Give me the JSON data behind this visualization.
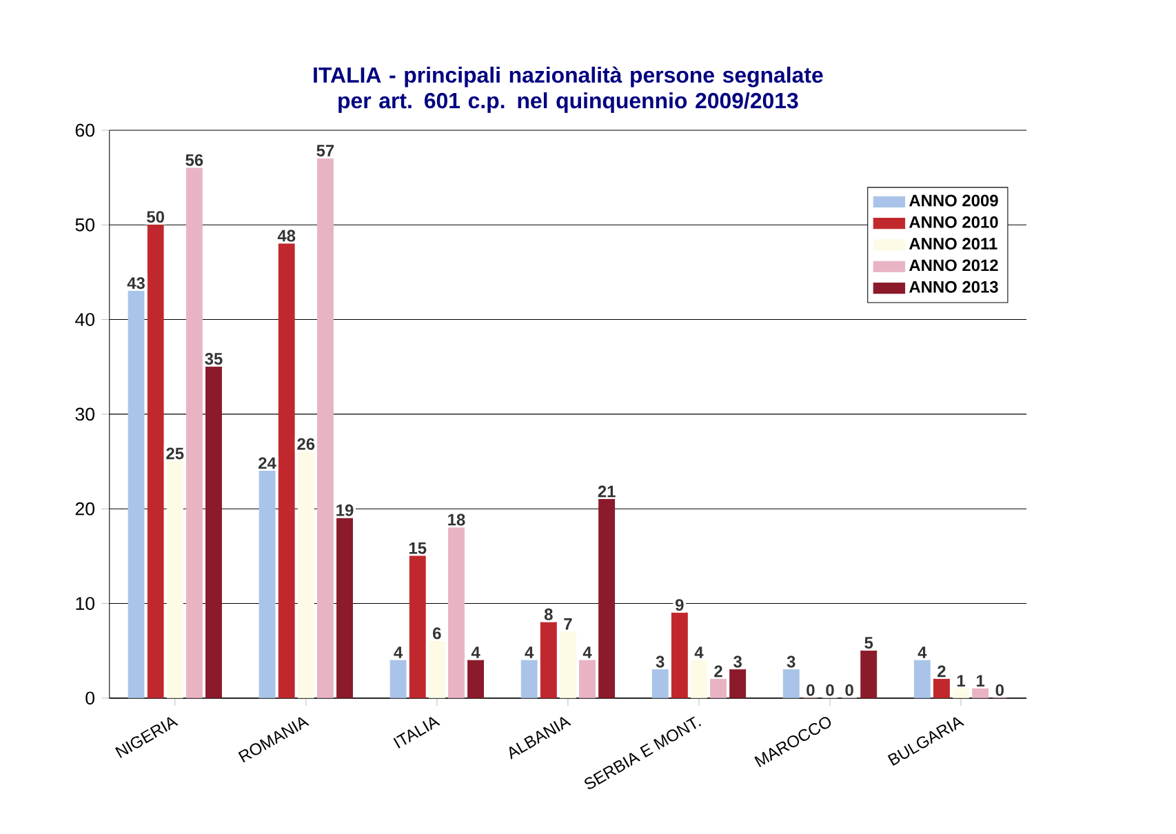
{
  "chart_data": {
    "type": "bar",
    "title": "ITALIA - principali nazionalità persone segnalate per art. 601 c.p. nel quinquennio 2009/2013",
    "categories": [
      "NIGERIA",
      "ROMANIA",
      "ITALIA",
      "ALBANIA",
      "SERBIA E MONT.",
      "MAROCCO",
      "BULGARIA"
    ],
    "series": [
      {
        "name": "ANNO 2009",
        "color": "#a9c4e8",
        "values": [
          43,
          24,
          4,
          4,
          3,
          3,
          4
        ]
      },
      {
        "name": "ANNO 2010",
        "color": "#c0282d",
        "values": [
          50,
          48,
          15,
          8,
          9,
          0,
          2
        ]
      },
      {
        "name": "ANNO 2011",
        "color": "#fdfbe6",
        "values": [
          25,
          26,
          6,
          7,
          4,
          0,
          1
        ]
      },
      {
        "name": "ANNO 2012",
        "color": "#e8b4c4",
        "values": [
          56,
          57,
          18,
          4,
          2,
          0,
          1
        ]
      },
      {
        "name": "ANNO 2013",
        "color": "#8b1a2a",
        "values": [
          35,
          19,
          4,
          21,
          3,
          5,
          0
        ]
      }
    ],
    "ylim": [
      0,
      60
    ],
    "yticks": [
      0,
      10,
      20,
      30,
      40,
      50,
      60
    ],
    "grid": "y",
    "legend": "top right",
    "data_labels": true
  }
}
